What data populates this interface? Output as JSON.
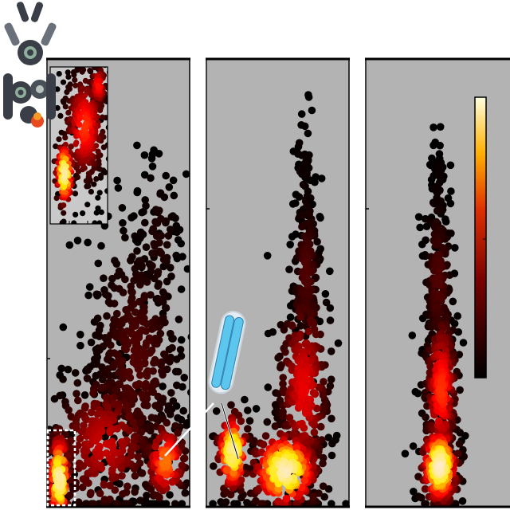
{
  "chart_data": [
    {
      "type": "scatter",
      "panel": "left",
      "title": "",
      "xlabel": "",
      "ylabel": "",
      "grid": false,
      "xlim": [
        0,
        100
      ],
      "ylim": [
        0,
        100
      ],
      "density_clusters": [
        {
          "x": 8,
          "y": 6,
          "spread": [
            4,
            6
          ],
          "count": 170,
          "hot": 0.95
        },
        {
          "x": 83,
          "y": 10,
          "spread": [
            8,
            5
          ],
          "count": 140,
          "hot": 0.55
        },
        {
          "x": 40,
          "y": 14,
          "spread": [
            20,
            9
          ],
          "count": 300,
          "hot": 0.3
        },
        {
          "x": 62,
          "y": 32,
          "spread": [
            18,
            16
          ],
          "count": 470,
          "hot": 0.12
        },
        {
          "x": 78,
          "y": 58,
          "spread": [
            9,
            10
          ],
          "count": 90,
          "hot": 0.05
        }
      ],
      "inset": {
        "density_clusters": [
          {
            "x": 25,
            "y": 32,
            "spread": [
              9,
              12
            ],
            "count": 120,
            "hot": 0.95
          },
          {
            "x": 60,
            "y": 62,
            "spread": [
              20,
              20
            ],
            "count": 360,
            "hot": 0.45
          },
          {
            "x": 84,
            "y": 88,
            "spread": [
              8,
              8
            ],
            "count": 90,
            "hot": 0.4
          }
        ]
      }
    },
    {
      "type": "scatter",
      "panel": "middle",
      "title": "",
      "xlabel": "",
      "ylabel": "",
      "grid": false,
      "xlim": [
        0,
        100
      ],
      "ylim": [
        0,
        100
      ],
      "density_clusters": [
        {
          "x": 18,
          "y": 12,
          "spread": [
            6,
            5
          ],
          "count": 150,
          "hot": 0.92
        },
        {
          "x": 55,
          "y": 8,
          "spread": [
            13,
            5
          ],
          "count": 260,
          "hot": 0.98
        },
        {
          "x": 68,
          "y": 26,
          "spread": [
            10,
            13
          ],
          "count": 300,
          "hot": 0.35
        },
        {
          "x": 70,
          "y": 52,
          "spread": [
            5,
            10
          ],
          "count": 160,
          "hot": 0.12
        },
        {
          "x": 68,
          "y": 75,
          "spread": [
            4,
            8
          ],
          "count": 45,
          "hot": 0.02
        }
      ]
    },
    {
      "type": "scatter",
      "panel": "right",
      "title": "",
      "xlabel": "",
      "ylabel": "",
      "grid": false,
      "xlim": [
        0,
        100
      ],
      "ylim": [
        0,
        100
      ],
      "density_clusters": [
        {
          "x": 51,
          "y": 9,
          "spread": [
            7,
            5
          ],
          "count": 240,
          "hot": 1.0
        },
        {
          "x": 52,
          "y": 26,
          "spread": [
            6,
            10
          ],
          "count": 280,
          "hot": 0.45
        },
        {
          "x": 50,
          "y": 50,
          "spread": [
            5,
            11
          ],
          "count": 190,
          "hot": 0.12
        },
        {
          "x": 50,
          "y": 70,
          "spread": [
            3,
            7
          ],
          "count": 55,
          "hot": 0.02
        }
      ],
      "colorbar": {
        "colormap": "hot",
        "orientation": "vertical",
        "tick_labels": []
      }
    }
  ],
  "colors": {
    "panel_background": "#b3b3b3",
    "axis_line": "#000000",
    "inset_background": "#c9c9c9",
    "capsule_fill": "#5cc6ee",
    "capsule_outline": "#2f7fb0",
    "logo_dark": "#3a3f47",
    "logo_mid": "#6a717a",
    "logo_green": "#8fae9d",
    "logo_accent": "#e8491f"
  },
  "icons": {
    "logo": "stacked-rings-logo-icon",
    "capsule": "capsule-cell-icon"
  }
}
